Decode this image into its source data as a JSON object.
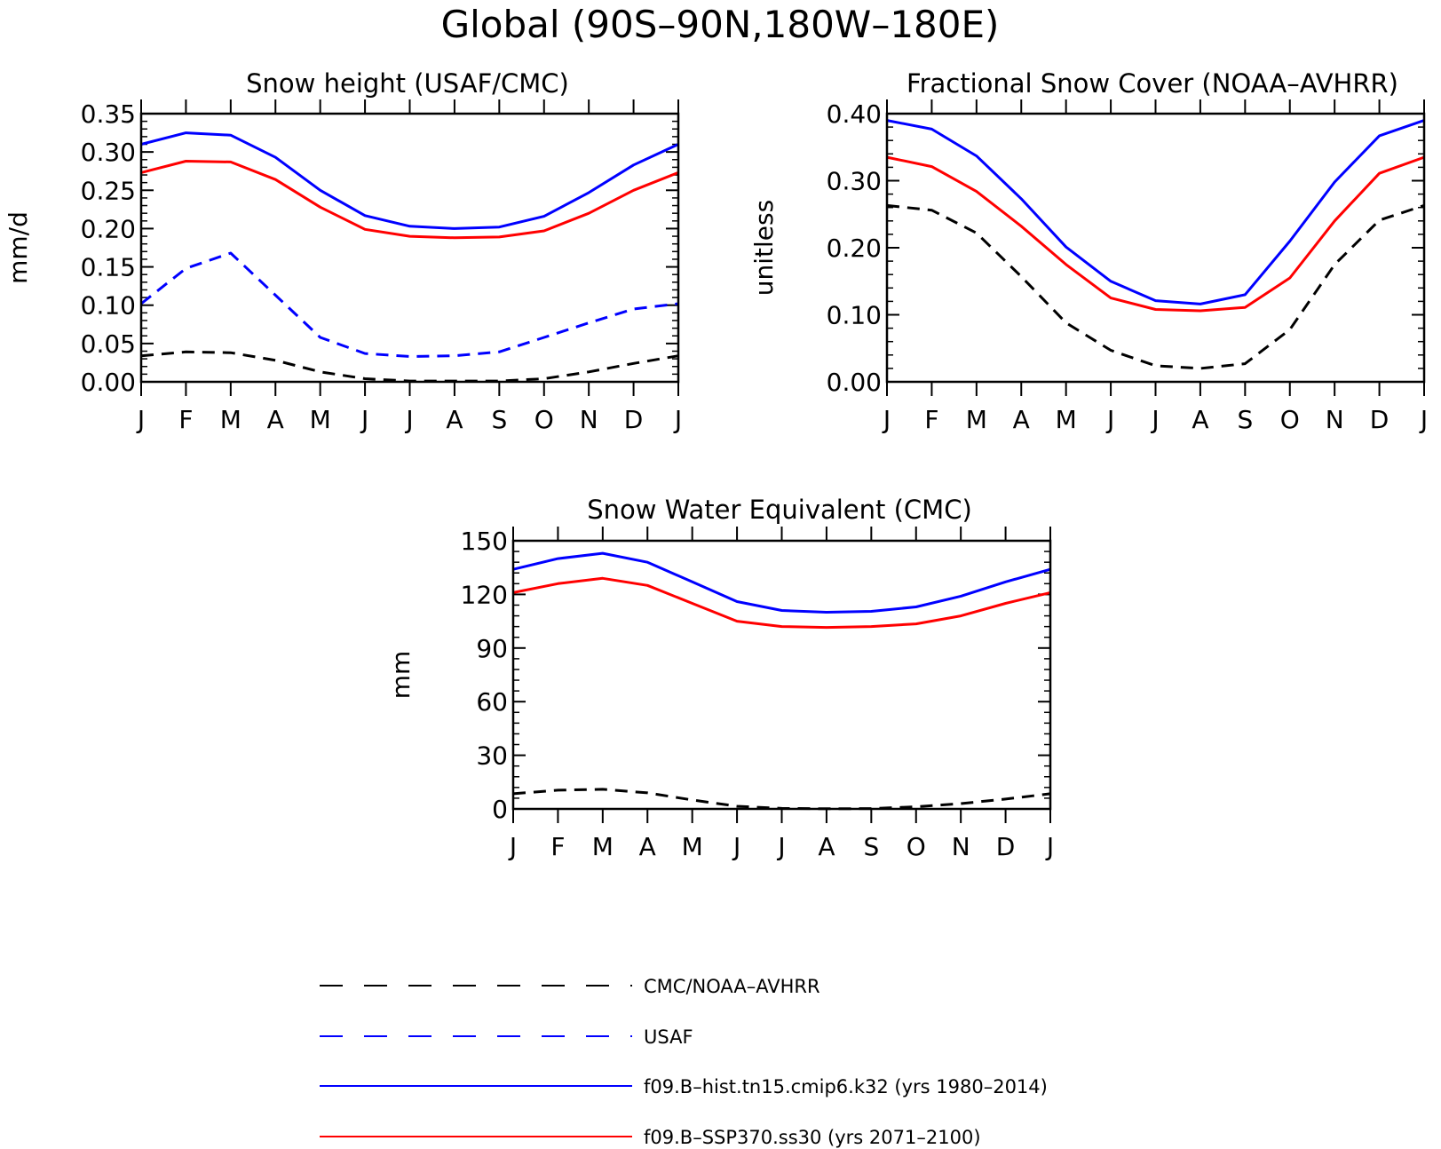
{
  "figure": {
    "title": "Global (90S–90N,180W–180E)"
  },
  "colors": {
    "observation": "#000000",
    "usaf": "#0000ff",
    "historical": "#0000ff",
    "future": "#ff0000"
  },
  "legend": [
    {
      "label": "CMC/NOAA–AVHRR",
      "color": "#000000",
      "style": "dashed"
    },
    {
      "label": "USAF",
      "color": "#0000ff",
      "style": "dashed"
    },
    {
      "label": "f09.B–hist.tn15.cmip6.k32 (yrs 1980–2014)",
      "color": "#0000ff",
      "style": "solid"
    },
    {
      "label": "f09.B–SSP370.ss30 (yrs 2071–2100)",
      "color": "#ff0000",
      "style": "solid"
    }
  ],
  "chart_data": [
    {
      "type": "line",
      "title": "Snow height (USAF/CMC)",
      "xlabel": "",
      "ylabel": "mm/d",
      "categories": [
        "J",
        "F",
        "M",
        "A",
        "M",
        "J",
        "J",
        "A",
        "S",
        "O",
        "N",
        "D",
        "J"
      ],
      "ylim": [
        0,
        0.35
      ],
      "yticks": [
        0.0,
        0.05,
        0.1,
        0.15,
        0.2,
        0.25,
        0.3,
        0.35
      ],
      "ytick_labels": [
        "0.00",
        "0.05",
        "0.10",
        "0.15",
        "0.20",
        "0.25",
        "0.30",
        "0.35"
      ],
      "grid": false,
      "series": [
        {
          "name": "f09.B–hist.tn15.cmip6.k32 (yrs 1980–2014)",
          "color": "#0000ff",
          "style": "solid",
          "values": [
            0.31,
            0.325,
            0.322,
            0.293,
            0.25,
            0.217,
            0.203,
            0.2,
            0.202,
            0.216,
            0.247,
            0.283,
            0.31
          ]
        },
        {
          "name": "f09.B–SSP370.ss30 (yrs 2071–2100)",
          "color": "#ff0000",
          "style": "solid",
          "values": [
            0.273,
            0.288,
            0.287,
            0.264,
            0.228,
            0.199,
            0.19,
            0.188,
            0.189,
            0.197,
            0.22,
            0.25,
            0.273
          ]
        },
        {
          "name": "USAF",
          "color": "#0000ff",
          "style": "dashed",
          "values": [
            0.102,
            0.148,
            0.168,
            0.113,
            0.058,
            0.037,
            0.033,
            0.034,
            0.039,
            0.058,
            0.077,
            0.095,
            0.102
          ]
        },
        {
          "name": "CMC/NOAA–AVHRR",
          "color": "#000000",
          "style": "dashed",
          "values": [
            0.034,
            0.039,
            0.038,
            0.028,
            0.013,
            0.004,
            0.001,
            0.001,
            0.001,
            0.004,
            0.013,
            0.024,
            0.034
          ]
        }
      ]
    },
    {
      "type": "line",
      "title": "Fractional Snow Cover (NOAA–AVHRR)",
      "xlabel": "",
      "ylabel": "unitless",
      "categories": [
        "J",
        "F",
        "M",
        "A",
        "M",
        "J",
        "J",
        "A",
        "S",
        "O",
        "N",
        "D",
        "J"
      ],
      "ylim": [
        0,
        0.4
      ],
      "yticks": [
        0.0,
        0.1,
        0.2,
        0.3,
        0.4
      ],
      "ytick_labels": [
        "0.00",
        "0.10",
        "0.20",
        "0.30",
        "0.40"
      ],
      "grid": false,
      "series": [
        {
          "name": "f09.B–hist.tn15.cmip6.k32 (yrs 1980–2014)",
          "color": "#0000ff",
          "style": "solid",
          "values": [
            0.39,
            0.377,
            0.337,
            0.273,
            0.201,
            0.15,
            0.121,
            0.116,
            0.13,
            0.21,
            0.298,
            0.367,
            0.39
          ]
        },
        {
          "name": "f09.B–SSP370.ss30 (yrs 2071–2100)",
          "color": "#ff0000",
          "style": "solid",
          "values": [
            0.335,
            0.321,
            0.284,
            0.232,
            0.175,
            0.125,
            0.108,
            0.106,
            0.111,
            0.155,
            0.24,
            0.311,
            0.335
          ]
        },
        {
          "name": "CMC/NOAA–AVHRR",
          "color": "#000000",
          "style": "dashed",
          "values": [
            0.263,
            0.256,
            0.222,
            0.157,
            0.088,
            0.047,
            0.024,
            0.02,
            0.027,
            0.078,
            0.175,
            0.241,
            0.263
          ]
        }
      ]
    },
    {
      "type": "line",
      "title": "Snow Water Equivalent (CMC)",
      "xlabel": "",
      "ylabel": "mm",
      "categories": [
        "J",
        "F",
        "M",
        "A",
        "M",
        "J",
        "J",
        "A",
        "S",
        "O",
        "N",
        "D",
        "J"
      ],
      "ylim": [
        0,
        150
      ],
      "yticks": [
        0,
        30,
        60,
        90,
        120,
        150
      ],
      "ytick_labels": [
        "0",
        "30",
        "60",
        "90",
        "120",
        "150"
      ],
      "grid": false,
      "series": [
        {
          "name": "f09.B–hist.tn15.cmip6.k32 (yrs 1980–2014)",
          "color": "#0000ff",
          "style": "solid",
          "values": [
            134,
            140,
            143,
            138,
            127,
            116,
            111,
            110,
            110.5,
            113,
            119,
            127,
            134
          ]
        },
        {
          "name": "f09.B–SSP370.ss30 (yrs 2071–2100)",
          "color": "#ff0000",
          "style": "solid",
          "values": [
            121,
            126,
            129,
            125,
            115,
            105,
            102,
            101.5,
            102,
            103.5,
            108,
            115,
            121
          ]
        },
        {
          "name": "CMC/NOAA–AVHRR",
          "color": "#000000",
          "style": "dashed",
          "values": [
            8.5,
            10.5,
            11,
            9,
            5,
            1.5,
            0.3,
            0.1,
            0.2,
            1.2,
            3,
            5.5,
            8.5
          ]
        }
      ]
    }
  ]
}
